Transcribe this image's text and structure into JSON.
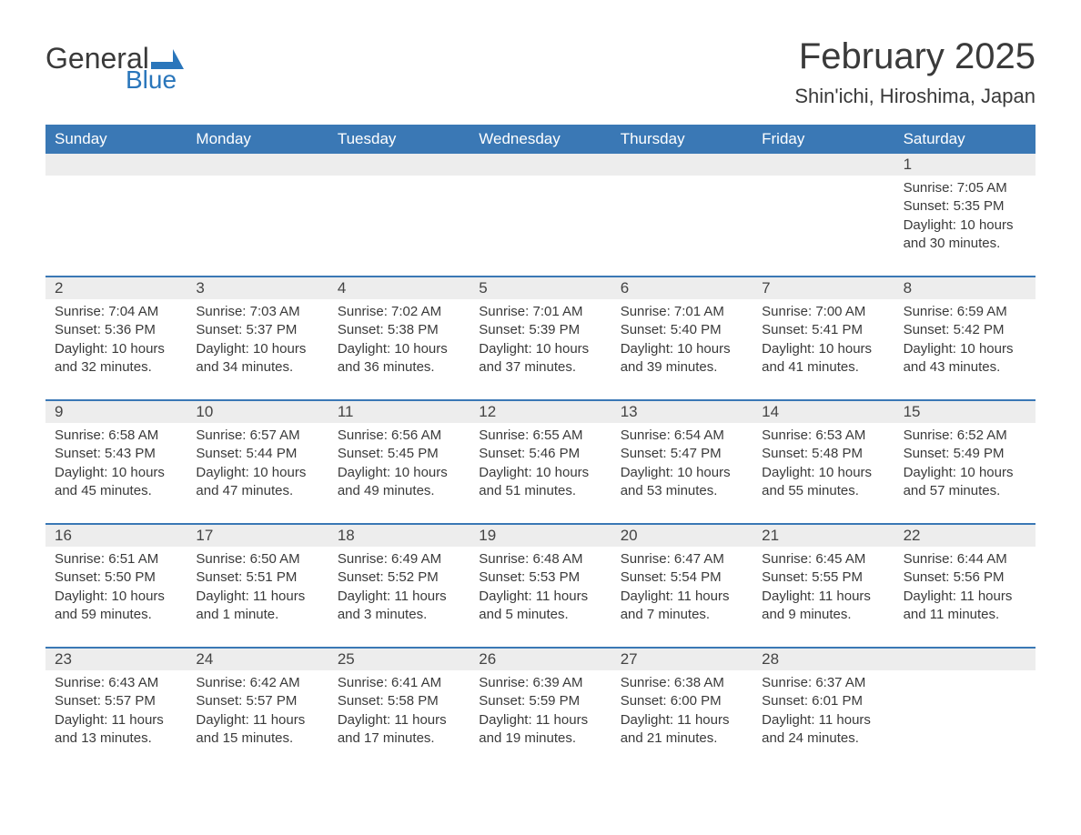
{
  "logo": {
    "text_general": "General",
    "text_blue": "Blue",
    "flag_color": "#2a76bb"
  },
  "title": "February 2025",
  "location": "Shin'ichi, Hiroshima, Japan",
  "colors": {
    "header_bg": "#3a78b5",
    "header_text": "#ffffff",
    "daynum_bg": "#ededed",
    "border_top": "#3a78b5",
    "body_text": "#3a3a3a",
    "page_bg": "#ffffff"
  },
  "typography": {
    "title_fontsize": 40,
    "location_fontsize": 22,
    "weekday_fontsize": 17,
    "daynum_fontsize": 17,
    "body_fontsize": 15
  },
  "weekdays": [
    "Sunday",
    "Monday",
    "Tuesday",
    "Wednesday",
    "Thursday",
    "Friday",
    "Saturday"
  ],
  "weeks": [
    [
      null,
      null,
      null,
      null,
      null,
      null,
      {
        "n": "1",
        "sunrise": "Sunrise: 7:05 AM",
        "sunset": "Sunset: 5:35 PM",
        "day": "Daylight: 10 hours and 30 minutes."
      }
    ],
    [
      {
        "n": "2",
        "sunrise": "Sunrise: 7:04 AM",
        "sunset": "Sunset: 5:36 PM",
        "day": "Daylight: 10 hours and 32 minutes."
      },
      {
        "n": "3",
        "sunrise": "Sunrise: 7:03 AM",
        "sunset": "Sunset: 5:37 PM",
        "day": "Daylight: 10 hours and 34 minutes."
      },
      {
        "n": "4",
        "sunrise": "Sunrise: 7:02 AM",
        "sunset": "Sunset: 5:38 PM",
        "day": "Daylight: 10 hours and 36 minutes."
      },
      {
        "n": "5",
        "sunrise": "Sunrise: 7:01 AM",
        "sunset": "Sunset: 5:39 PM",
        "day": "Daylight: 10 hours and 37 minutes."
      },
      {
        "n": "6",
        "sunrise": "Sunrise: 7:01 AM",
        "sunset": "Sunset: 5:40 PM",
        "day": "Daylight: 10 hours and 39 minutes."
      },
      {
        "n": "7",
        "sunrise": "Sunrise: 7:00 AM",
        "sunset": "Sunset: 5:41 PM",
        "day": "Daylight: 10 hours and 41 minutes."
      },
      {
        "n": "8",
        "sunrise": "Sunrise: 6:59 AM",
        "sunset": "Sunset: 5:42 PM",
        "day": "Daylight: 10 hours and 43 minutes."
      }
    ],
    [
      {
        "n": "9",
        "sunrise": "Sunrise: 6:58 AM",
        "sunset": "Sunset: 5:43 PM",
        "day": "Daylight: 10 hours and 45 minutes."
      },
      {
        "n": "10",
        "sunrise": "Sunrise: 6:57 AM",
        "sunset": "Sunset: 5:44 PM",
        "day": "Daylight: 10 hours and 47 minutes."
      },
      {
        "n": "11",
        "sunrise": "Sunrise: 6:56 AM",
        "sunset": "Sunset: 5:45 PM",
        "day": "Daylight: 10 hours and 49 minutes."
      },
      {
        "n": "12",
        "sunrise": "Sunrise: 6:55 AM",
        "sunset": "Sunset: 5:46 PM",
        "day": "Daylight: 10 hours and 51 minutes."
      },
      {
        "n": "13",
        "sunrise": "Sunrise: 6:54 AM",
        "sunset": "Sunset: 5:47 PM",
        "day": "Daylight: 10 hours and 53 minutes."
      },
      {
        "n": "14",
        "sunrise": "Sunrise: 6:53 AM",
        "sunset": "Sunset: 5:48 PM",
        "day": "Daylight: 10 hours and 55 minutes."
      },
      {
        "n": "15",
        "sunrise": "Sunrise: 6:52 AM",
        "sunset": "Sunset: 5:49 PM",
        "day": "Daylight: 10 hours and 57 minutes."
      }
    ],
    [
      {
        "n": "16",
        "sunrise": "Sunrise: 6:51 AM",
        "sunset": "Sunset: 5:50 PM",
        "day": "Daylight: 10 hours and 59 minutes."
      },
      {
        "n": "17",
        "sunrise": "Sunrise: 6:50 AM",
        "sunset": "Sunset: 5:51 PM",
        "day": "Daylight: 11 hours and 1 minute."
      },
      {
        "n": "18",
        "sunrise": "Sunrise: 6:49 AM",
        "sunset": "Sunset: 5:52 PM",
        "day": "Daylight: 11 hours and 3 minutes."
      },
      {
        "n": "19",
        "sunrise": "Sunrise: 6:48 AM",
        "sunset": "Sunset: 5:53 PM",
        "day": "Daylight: 11 hours and 5 minutes."
      },
      {
        "n": "20",
        "sunrise": "Sunrise: 6:47 AM",
        "sunset": "Sunset: 5:54 PM",
        "day": "Daylight: 11 hours and 7 minutes."
      },
      {
        "n": "21",
        "sunrise": "Sunrise: 6:45 AM",
        "sunset": "Sunset: 5:55 PM",
        "day": "Daylight: 11 hours and 9 minutes."
      },
      {
        "n": "22",
        "sunrise": "Sunrise: 6:44 AM",
        "sunset": "Sunset: 5:56 PM",
        "day": "Daylight: 11 hours and 11 minutes."
      }
    ],
    [
      {
        "n": "23",
        "sunrise": "Sunrise: 6:43 AM",
        "sunset": "Sunset: 5:57 PM",
        "day": "Daylight: 11 hours and 13 minutes."
      },
      {
        "n": "24",
        "sunrise": "Sunrise: 6:42 AM",
        "sunset": "Sunset: 5:57 PM",
        "day": "Daylight: 11 hours and 15 minutes."
      },
      {
        "n": "25",
        "sunrise": "Sunrise: 6:41 AM",
        "sunset": "Sunset: 5:58 PM",
        "day": "Daylight: 11 hours and 17 minutes."
      },
      {
        "n": "26",
        "sunrise": "Sunrise: 6:39 AM",
        "sunset": "Sunset: 5:59 PM",
        "day": "Daylight: 11 hours and 19 minutes."
      },
      {
        "n": "27",
        "sunrise": "Sunrise: 6:38 AM",
        "sunset": "Sunset: 6:00 PM",
        "day": "Daylight: 11 hours and 21 minutes."
      },
      {
        "n": "28",
        "sunrise": "Sunrise: 6:37 AM",
        "sunset": "Sunset: 6:01 PM",
        "day": "Daylight: 11 hours and 24 minutes."
      },
      null
    ]
  ]
}
